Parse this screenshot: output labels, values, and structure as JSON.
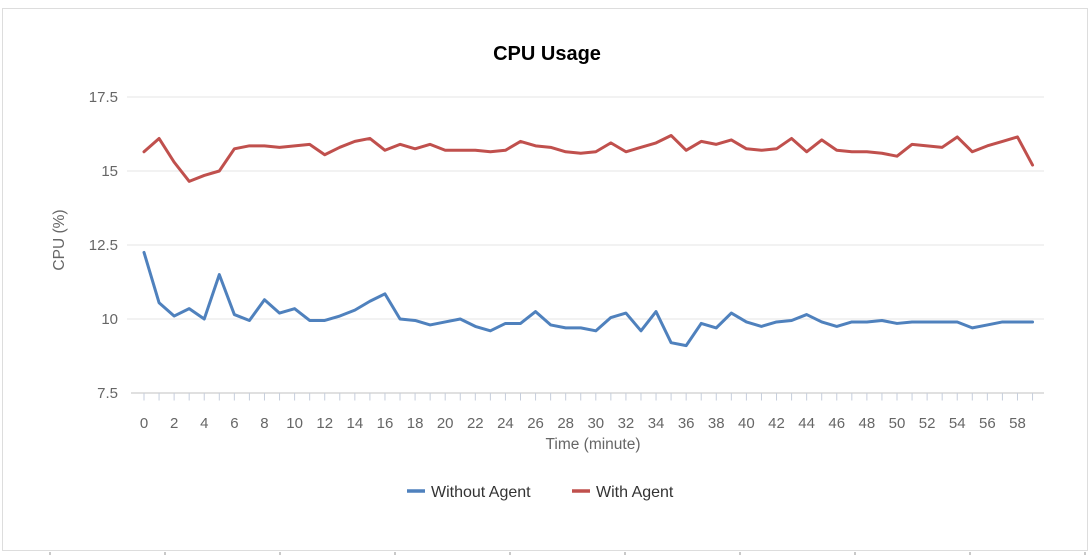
{
  "chart_data": {
    "type": "line",
    "title": "CPU Usage",
    "xlabel": "Time (minute)",
    "ylabel": "CPU (%)",
    "xlim": [
      0,
      59
    ],
    "ylim": [
      7.5,
      17.5
    ],
    "grid": "horizontal",
    "legend_position": "bottom",
    "y_ticks": [
      7.5,
      10,
      12.5,
      15,
      17.5
    ],
    "x_ticks_labeled": [
      0,
      2,
      4,
      6,
      8,
      10,
      12,
      14,
      16,
      18,
      20,
      22,
      24,
      26,
      28,
      30,
      32,
      34,
      36,
      38,
      40,
      42,
      44,
      46,
      48,
      50,
      52,
      54,
      56,
      58
    ],
    "x_minor_tick_every": 1,
    "x": [
      0,
      1,
      2,
      3,
      4,
      5,
      6,
      7,
      8,
      9,
      10,
      11,
      12,
      13,
      14,
      15,
      16,
      17,
      18,
      19,
      20,
      21,
      22,
      23,
      24,
      25,
      26,
      27,
      28,
      29,
      30,
      31,
      32,
      33,
      34,
      35,
      36,
      37,
      38,
      39,
      40,
      41,
      42,
      43,
      44,
      45,
      46,
      47,
      48,
      49,
      50,
      51,
      52,
      53,
      54,
      55,
      56,
      57,
      58,
      59
    ],
    "series": [
      {
        "name": "Without Agent",
        "color": "#4F81BD",
        "values": [
          12.25,
          10.55,
          10.1,
          10.35,
          10.0,
          11.5,
          10.15,
          9.95,
          10.65,
          10.2,
          10.35,
          9.95,
          9.95,
          10.1,
          10.3,
          10.6,
          10.85,
          10.0,
          9.95,
          9.8,
          9.9,
          10.0,
          9.75,
          9.6,
          9.85,
          9.85,
          10.25,
          9.8,
          9.7,
          9.7,
          9.6,
          10.05,
          10.2,
          9.6,
          10.25,
          9.2,
          9.1,
          9.85,
          9.7,
          10.2,
          9.9,
          9.75,
          9.9,
          9.95,
          10.15,
          9.9,
          9.75,
          9.9,
          9.9,
          9.95,
          9.85,
          9.9,
          9.9,
          9.9,
          9.9,
          9.7,
          9.8,
          9.9,
          9.9,
          9.9
        ]
      },
      {
        "name": "With Agent",
        "color": "#C0504D",
        "values": [
          15.65,
          16.1,
          15.3,
          14.65,
          14.85,
          15.0,
          15.75,
          15.85,
          15.85,
          15.8,
          15.85,
          15.9,
          15.55,
          15.8,
          16.0,
          16.1,
          15.7,
          15.9,
          15.75,
          15.9,
          15.7,
          15.7,
          15.7,
          15.65,
          15.7,
          16.0,
          15.85,
          15.8,
          15.65,
          15.6,
          15.65,
          15.95,
          15.65,
          15.8,
          15.95,
          16.2,
          15.7,
          16.0,
          15.9,
          16.05,
          15.75,
          15.7,
          15.75,
          16.1,
          15.65,
          16.05,
          15.7,
          15.65,
          15.65,
          15.6,
          15.5,
          15.9,
          15.85,
          15.8,
          16.15,
          15.65,
          15.85,
          16.0,
          16.15,
          15.2
        ]
      }
    ],
    "colors": {
      "gridline": "#e6e6e6",
      "axis_line": "#d6d6d6",
      "tick_mark": "#c6cedc",
      "tick_label": "#666666",
      "title": "#000000",
      "legend_text": "#333333"
    }
  }
}
